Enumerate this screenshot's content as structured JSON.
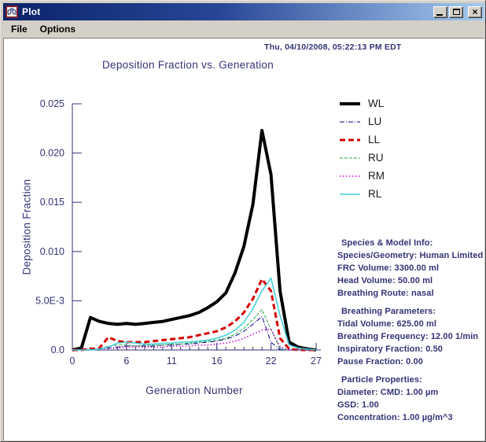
{
  "window": {
    "title": "Plot",
    "controls": {
      "minimize": "minimize",
      "maximize": "maximize",
      "close": "close"
    }
  },
  "menu": {
    "items": [
      "File",
      "Options"
    ]
  },
  "header": {
    "timestamp": "Thu, 04/10/2008, 05:22:13 PM EDT"
  },
  "chart_data": {
    "type": "line",
    "title": "Deposition Fraction vs. Generation",
    "xlabel": "Generation Number",
    "ylabel": "Deposition Fraction",
    "xlim": [
      0,
      27
    ],
    "ylim": [
      0,
      0.025
    ],
    "grid": false,
    "legend_position": "right-top",
    "x_ticks": [
      0,
      6,
      11,
      16,
      22,
      27
    ],
    "x_minor_tick_step": 1,
    "y_ticks": [
      {
        "value": 0.0,
        "label": "0.0"
      },
      {
        "value": 0.005,
        "label": "5.0E-3"
      },
      {
        "value": 0.01,
        "label": "0.010"
      },
      {
        "value": 0.015,
        "label": "0.015"
      },
      {
        "value": 0.02,
        "label": "0.020"
      },
      {
        "value": 0.025,
        "label": "0.025"
      }
    ],
    "x": [
      0,
      1,
      2,
      3,
      4,
      5,
      6,
      7,
      8,
      9,
      10,
      11,
      12,
      13,
      14,
      15,
      16,
      17,
      18,
      19,
      20,
      21,
      22,
      23,
      24,
      25,
      26,
      27
    ],
    "series": [
      {
        "name": "WL",
        "color": "#000000",
        "style": "solid",
        "width": 4,
        "values": [
          0.0,
          0.0002,
          0.0033,
          0.0029,
          0.0027,
          0.0026,
          0.0027,
          0.0026,
          0.0027,
          0.0028,
          0.0029,
          0.0031,
          0.0033,
          0.0035,
          0.0038,
          0.0043,
          0.0049,
          0.0058,
          0.0078,
          0.0105,
          0.0148,
          0.0223,
          0.0178,
          0.006,
          0.0008,
          0.0003,
          0.0001,
          0.0
        ]
      },
      {
        "name": "LU",
        "color": "#000080",
        "style": "dash-dot",
        "width": 1,
        "values": [
          0.0,
          0.0,
          0.0001,
          0.0001,
          0.0002,
          0.0003,
          0.0004,
          0.0004,
          0.0004,
          0.0004,
          0.0005,
          0.0005,
          0.0006,
          0.0006,
          0.0007,
          0.0008,
          0.0009,
          0.0011,
          0.0014,
          0.0019,
          0.0026,
          0.0034,
          0.0008,
          0.0,
          0.0,
          0.0,
          0.0,
          0.0
        ]
      },
      {
        "name": "LL",
        "color": "#d40000",
        "style": "dashed",
        "width": 3,
        "values": [
          0.0,
          0.0,
          0.0001,
          0.0002,
          0.0013,
          0.0009,
          0.0008,
          0.0008,
          0.0008,
          0.0009,
          0.001,
          0.0011,
          0.0012,
          0.0013,
          0.0015,
          0.0017,
          0.0019,
          0.0023,
          0.0029,
          0.0038,
          0.0052,
          0.0072,
          0.006,
          0.0012,
          0.0001,
          0.0,
          0.0,
          0.0
        ]
      },
      {
        "name": "RU",
        "color": "#22aa44",
        "style": "dashed-fine",
        "width": 1,
        "values": [
          0.0,
          0.0,
          0.0,
          0.0001,
          0.0004,
          0.0005,
          0.0005,
          0.0004,
          0.0005,
          0.0005,
          0.0005,
          0.0006,
          0.0006,
          0.0007,
          0.0008,
          0.0009,
          0.001,
          0.0012,
          0.0016,
          0.0022,
          0.0031,
          0.0041,
          0.0021,
          0.0001,
          0.0,
          0.0,
          0.0,
          0.0
        ]
      },
      {
        "name": "RM",
        "color": "#cc00cc",
        "style": "dotted",
        "width": 1.5,
        "values": [
          0.0,
          0.0,
          0.0,
          0.0001,
          0.0002,
          0.0002,
          0.0003,
          0.0003,
          0.0003,
          0.0003,
          0.0003,
          0.0004,
          0.0004,
          0.0004,
          0.0005,
          0.0005,
          0.0006,
          0.0007,
          0.0009,
          0.0012,
          0.0016,
          0.002,
          0.0021,
          0.0003,
          0.0,
          0.0,
          0.0,
          0.0
        ]
      },
      {
        "name": "RL",
        "color": "#3fcfd6",
        "style": "solid",
        "width": 1.5,
        "values": [
          0.0,
          0.0,
          0.0,
          0.0001,
          0.0003,
          0.0007,
          0.0008,
          0.0007,
          0.0006,
          0.0006,
          0.0007,
          0.0007,
          0.0008,
          0.0008,
          0.0009,
          0.001,
          0.0012,
          0.0015,
          0.002,
          0.0028,
          0.0042,
          0.006,
          0.0073,
          0.0035,
          0.0005,
          0.0002,
          0.0001,
          0.0
        ]
      }
    ]
  },
  "info_panel": {
    "sections": [
      {
        "header": "Species & Model Info:",
        "lines": [
          "Species/Geometry: Human Limited",
          "FRC Volume: 3300.00 ml",
          "Head Volume: 50.00 ml",
          "Breathing Route: nasal"
        ]
      },
      {
        "header": "Breathing Parameters:",
        "lines": [
          "Tidal Volume: 625.00 ml",
          "Breathing Frequency: 12.00 1/min",
          "Inspiratory Fraction: 0.50",
          "Pause Fraction: 0.00"
        ]
      },
      {
        "header": "Particle Properties:",
        "lines": [
          "Diameter: CMD: 1.00 µm",
          "GSD: 1.00",
          "Concentration: 1.00 µg/m^3"
        ]
      }
    ]
  },
  "colors": {
    "text_navy": "#333377",
    "axis": "#333377",
    "chrome_gray": "#d4d0c8",
    "titlebar_left": "#0a246a",
    "titlebar_right": "#a6caf0",
    "plot_background": "#ffffff"
  }
}
